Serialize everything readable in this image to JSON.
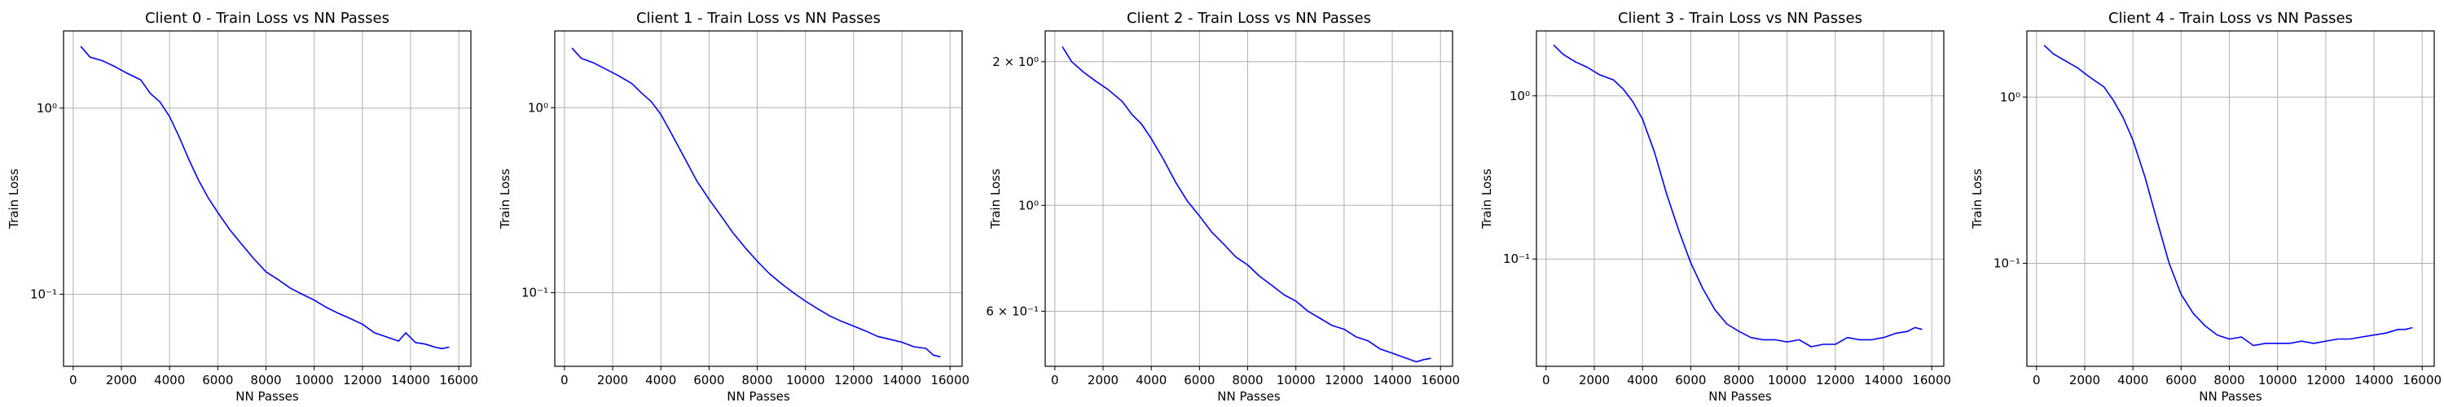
{
  "colors": {
    "series": "#0000ff",
    "grid": "#b0b0b0",
    "axes": "#000000",
    "background": "#ffffff"
  },
  "chart_data": [
    {
      "type": "line",
      "title": "Client 0 - Train Loss vs NN Passes",
      "xlabel": "NN Passes",
      "ylabel": "Train Loss",
      "yscale": "log",
      "grid": true,
      "xlim": [
        -400,
        16500
      ],
      "ylim": [
        0.041,
        2.6
      ],
      "xticks": [
        0,
        2000,
        4000,
        6000,
        8000,
        10000,
        12000,
        14000,
        16000
      ],
      "xtick_labels": [
        "0",
        "2000",
        "4000",
        "6000",
        "8000",
        "10000",
        "12000",
        "14000",
        "16000"
      ],
      "yticks": [
        0.1,
        1
      ],
      "ytick_labels": [
        "10⁻¹",
        "10⁰"
      ],
      "series": [
        {
          "x": [
            312,
            700,
            1200,
            1700,
            2200,
            2800,
            3200,
            3600,
            4000,
            4400,
            4800,
            5200,
            5600,
            6000,
            6500,
            7000,
            7500,
            8000,
            8500,
            9000,
            9500,
            10000,
            10500,
            11000,
            11500,
            12000,
            12500,
            13000,
            13500,
            13800,
            14200,
            14600,
            15000,
            15300,
            15600
          ],
          "y": [
            2.15,
            1.88,
            1.8,
            1.68,
            1.55,
            1.42,
            1.2,
            1.08,
            0.9,
            0.7,
            0.53,
            0.41,
            0.33,
            0.275,
            0.222,
            0.185,
            0.155,
            0.132,
            0.12,
            0.108,
            0.1,
            0.093,
            0.085,
            0.079,
            0.074,
            0.069,
            0.062,
            0.059,
            0.056,
            0.062,
            0.055,
            0.054,
            0.052,
            0.051,
            0.052
          ]
        }
      ]
    },
    {
      "type": "line",
      "title": "Client 1 - Train Loss vs NN Passes",
      "xlabel": "NN Passes",
      "ylabel": "Train Loss",
      "yscale": "log",
      "grid": true,
      "xlim": [
        -400,
        16500
      ],
      "ylim": [
        0.04,
        2.6
      ],
      "xticks": [
        0,
        2000,
        4000,
        6000,
        8000,
        10000,
        12000,
        14000,
        16000
      ],
      "xtick_labels": [
        "0",
        "2000",
        "4000",
        "6000",
        "8000",
        "10000",
        "12000",
        "14000",
        "16000"
      ],
      "yticks": [
        0.1,
        1
      ],
      "ytick_labels": [
        "10⁻¹",
        "10⁰"
      ],
      "series": [
        {
          "x": [
            312,
            700,
            1200,
            1700,
            2200,
            2800,
            3200,
            3600,
            4000,
            4500,
            5000,
            5500,
            6000,
            6500,
            7000,
            7500,
            8000,
            8500,
            9000,
            9500,
            10000,
            10500,
            11000,
            11500,
            12000,
            12500,
            13000,
            13500,
            14000,
            14500,
            15000,
            15300,
            15600
          ],
          "y": [
            2.1,
            1.85,
            1.75,
            1.62,
            1.5,
            1.35,
            1.2,
            1.08,
            0.92,
            0.7,
            0.53,
            0.4,
            0.32,
            0.26,
            0.21,
            0.175,
            0.148,
            0.127,
            0.112,
            0.1,
            0.09,
            0.082,
            0.075,
            0.07,
            0.066,
            0.062,
            0.058,
            0.056,
            0.054,
            0.051,
            0.05,
            0.046,
            0.045
          ]
        }
      ]
    },
    {
      "type": "line",
      "title": "Client 2 - Train Loss vs NN Passes",
      "xlabel": "NN Passes",
      "ylabel": "Train Loss",
      "yscale": "log",
      "grid": true,
      "xlim": [
        -400,
        16500
      ],
      "ylim": [
        0.46,
        2.32
      ],
      "xticks": [
        0,
        2000,
        4000,
        6000,
        8000,
        10000,
        12000,
        14000,
        16000
      ],
      "xtick_labels": [
        "0",
        "2000",
        "4000",
        "6000",
        "8000",
        "10000",
        "12000",
        "14000",
        "16000"
      ],
      "yticks": [
        0.6,
        1,
        2
      ],
      "ytick_labels": [
        "6 × 10⁻¹",
        "10⁰",
        "2 × 10⁰"
      ],
      "series": [
        {
          "x": [
            312,
            700,
            1200,
            1700,
            2200,
            2800,
            3200,
            3600,
            4000,
            4500,
            5000,
            5500,
            6000,
            6500,
            7000,
            7500,
            8000,
            8500,
            9000,
            9500,
            10000,
            10500,
            11000,
            11500,
            12000,
            12500,
            13000,
            13500,
            14000,
            14500,
            15000,
            15300,
            15600
          ],
          "y": [
            2.15,
            2.0,
            1.9,
            1.82,
            1.75,
            1.65,
            1.55,
            1.48,
            1.38,
            1.25,
            1.12,
            1.02,
            0.95,
            0.88,
            0.83,
            0.78,
            0.75,
            0.71,
            0.68,
            0.65,
            0.63,
            0.6,
            0.58,
            0.56,
            0.55,
            0.53,
            0.52,
            0.5,
            0.49,
            0.48,
            0.47,
            0.475,
            0.478
          ]
        }
      ]
    },
    {
      "type": "line",
      "title": "Client 3 - Train Loss vs NN Passes",
      "xlabel": "NN Passes",
      "ylabel": "Train Loss",
      "yscale": "log",
      "grid": true,
      "xlim": [
        -400,
        16500
      ],
      "ylim": [
        0.022,
        2.5
      ],
      "xticks": [
        0,
        2000,
        4000,
        6000,
        8000,
        10000,
        12000,
        14000,
        16000
      ],
      "xtick_labels": [
        "0",
        "2000",
        "4000",
        "6000",
        "8000",
        "10000",
        "12000",
        "14000",
        "16000"
      ],
      "yticks": [
        0.1,
        1
      ],
      "ytick_labels": [
        "10⁻¹",
        "10⁰"
      ],
      "series": [
        {
          "x": [
            312,
            700,
            1200,
            1700,
            2200,
            2800,
            3200,
            3600,
            4000,
            4500,
            5000,
            5500,
            6000,
            6500,
            7000,
            7500,
            8000,
            8500,
            9000,
            9500,
            10000,
            10500,
            11000,
            11500,
            12000,
            12500,
            13000,
            13500,
            14000,
            14500,
            15000,
            15300,
            15600
          ],
          "y": [
            2.05,
            1.8,
            1.62,
            1.5,
            1.35,
            1.25,
            1.1,
            0.92,
            0.72,
            0.45,
            0.25,
            0.15,
            0.095,
            0.066,
            0.049,
            0.04,
            0.036,
            0.033,
            0.032,
            0.032,
            0.031,
            0.032,
            0.029,
            0.03,
            0.03,
            0.033,
            0.032,
            0.032,
            0.033,
            0.035,
            0.036,
            0.038,
            0.037
          ]
        }
      ]
    },
    {
      "type": "line",
      "title": "Client 4 - Train Loss vs NN Passes",
      "xlabel": "NN Passes",
      "ylabel": "Train Loss",
      "yscale": "log",
      "grid": true,
      "xlim": [
        -400,
        16500
      ],
      "ylim": [
        0.024,
        2.5
      ],
      "xticks": [
        0,
        2000,
        4000,
        6000,
        8000,
        10000,
        12000,
        14000,
        16000
      ],
      "xtick_labels": [
        "0",
        "2000",
        "4000",
        "6000",
        "8000",
        "10000",
        "12000",
        "14000",
        "16000"
      ],
      "yticks": [
        0.1,
        1
      ],
      "ytick_labels": [
        "10⁻¹",
        "10⁰"
      ],
      "series": [
        {
          "x": [
            312,
            700,
            1200,
            1700,
            2200,
            2800,
            3200,
            3600,
            4000,
            4500,
            5000,
            5500,
            6000,
            6500,
            7000,
            7500,
            8000,
            8500,
            9000,
            9500,
            10000,
            10500,
            11000,
            11500,
            12000,
            12500,
            13000,
            13500,
            14000,
            14500,
            15000,
            15300,
            15600
          ],
          "y": [
            2.05,
            1.82,
            1.65,
            1.5,
            1.32,
            1.15,
            0.95,
            0.75,
            0.55,
            0.33,
            0.18,
            0.1,
            0.065,
            0.05,
            0.042,
            0.037,
            0.035,
            0.036,
            0.032,
            0.033,
            0.033,
            0.033,
            0.034,
            0.033,
            0.034,
            0.035,
            0.035,
            0.036,
            0.037,
            0.038,
            0.04,
            0.04,
            0.041
          ]
        }
      ]
    }
  ]
}
